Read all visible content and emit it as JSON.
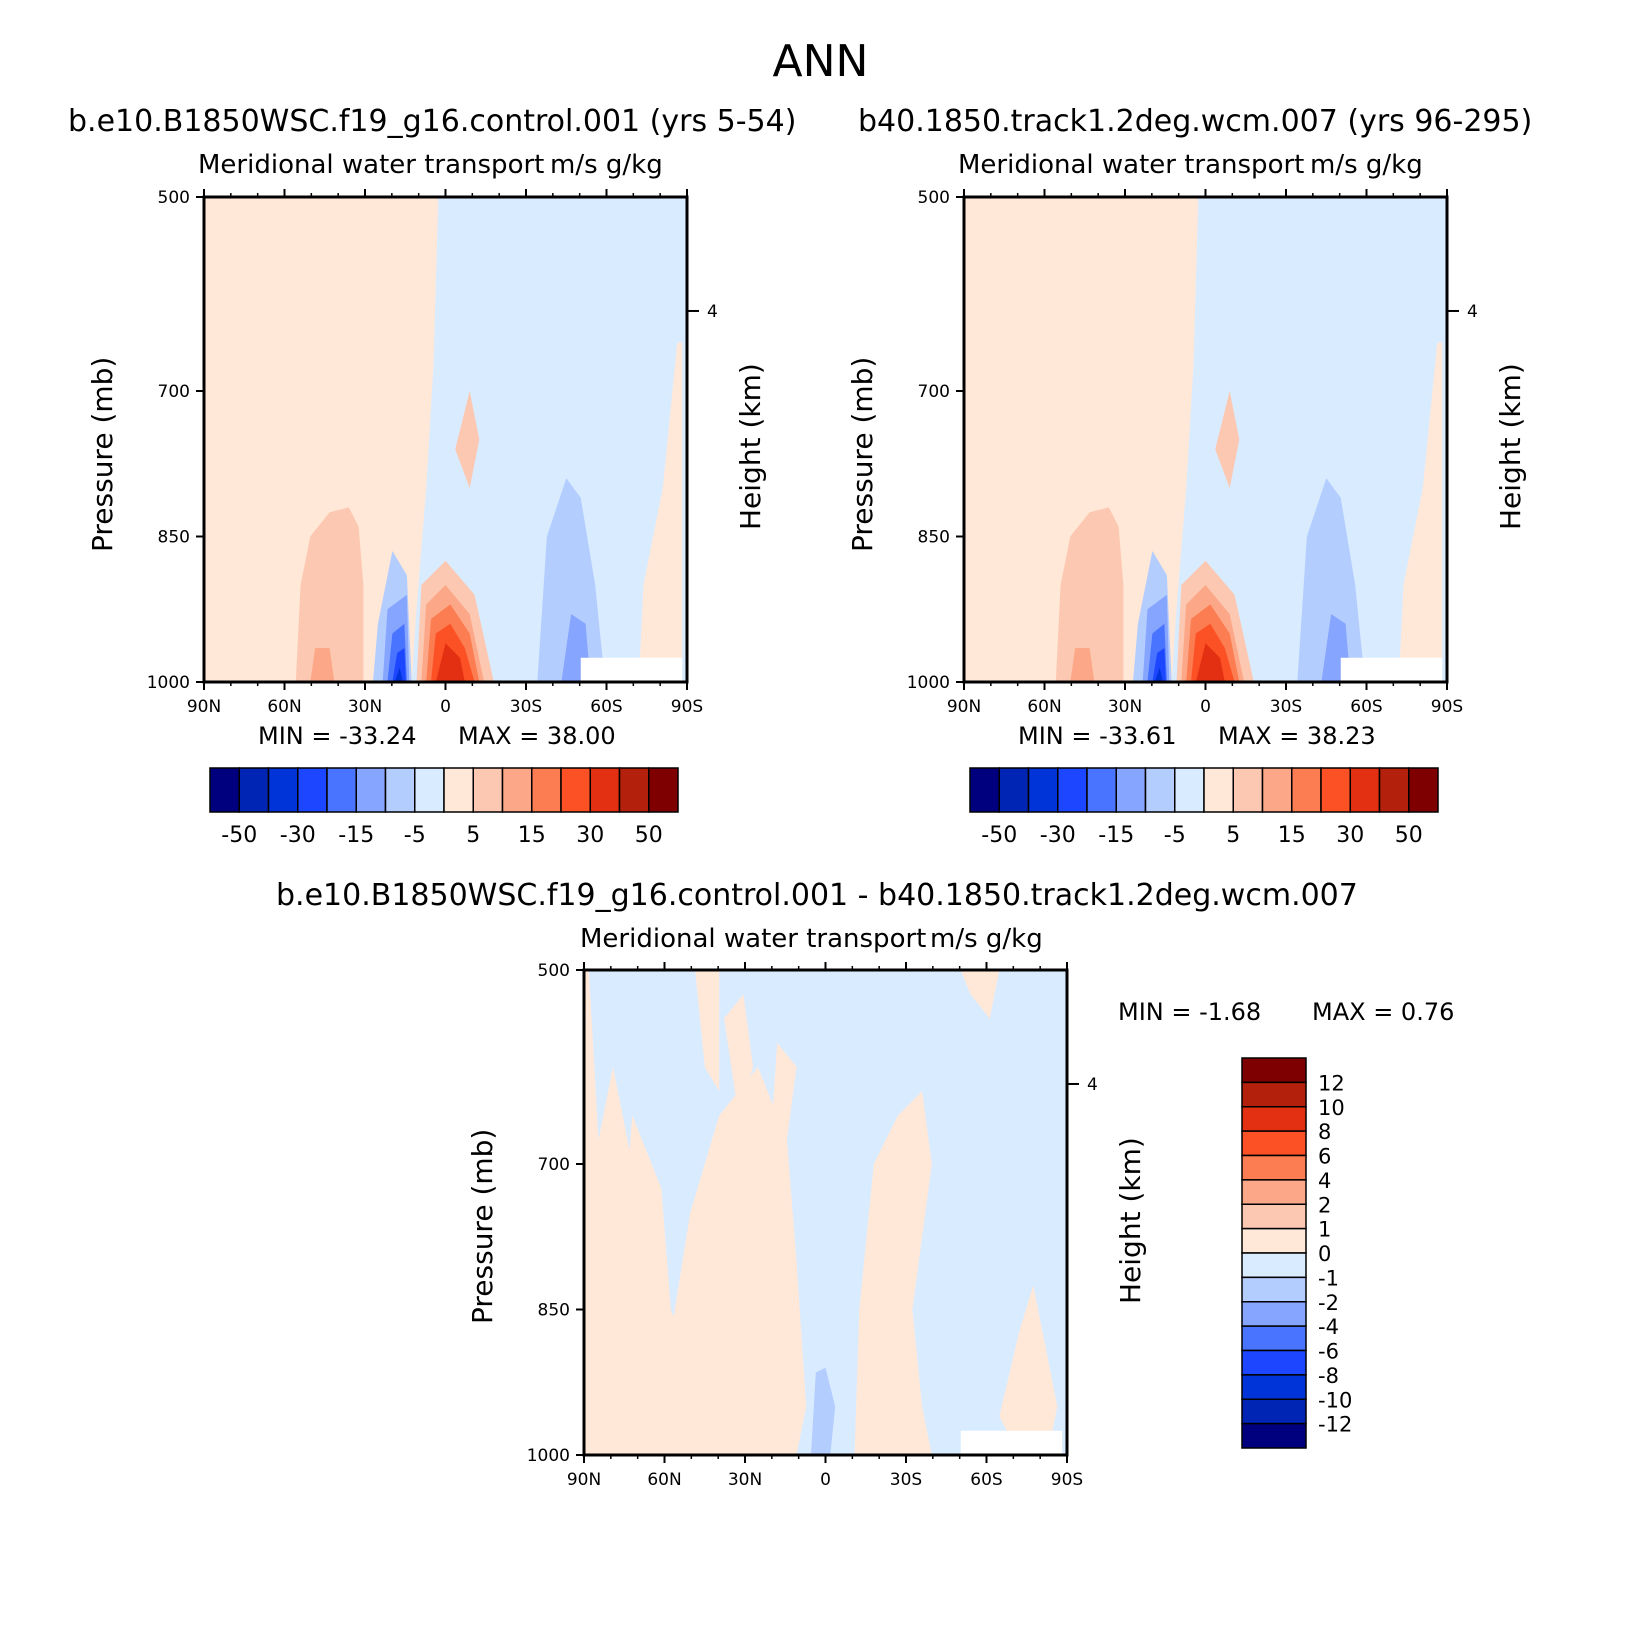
{
  "title": "ANN",
  "palette_diverging": [
    "#00007f",
    "#0025b4",
    "#0034d9",
    "#1c46ff",
    "#4974ff",
    "#86a5ff",
    "#b4cdff",
    "#d9ebff",
    "#ffe8d8",
    "#fdc8b1",
    "#fca888",
    "#fb7d51",
    "#fb5125",
    "#e43012",
    "#b3200b",
    "#7f0000"
  ],
  "chart_data": [
    {
      "type": "heatmap",
      "panel_title": "b.e10.B1850WSC.f19_g16.control.001 (yrs 5-54)",
      "subtitle_left": "Meridional water transport",
      "subtitle_right": "m/s g/kg",
      "ylabel": "Pressure (mb)",
      "ylabel_right": "Height (km)",
      "x_ticks": [
        "90N",
        "60N",
        "30N",
        "0",
        "30S",
        "60S",
        "90S"
      ],
      "y_ticks": [
        "500",
        "700",
        "850",
        "1000"
      ],
      "right_tick": "4",
      "ylim": [
        1000,
        500
      ],
      "min_label": "MIN = -33.24",
      "max_label": "MAX = 38.00",
      "min": -33.24,
      "max": 38.0,
      "colorbar_labels": [
        "-50",
        "-30",
        "-15",
        "-5",
        "5",
        "15",
        "30",
        "50"
      ]
    },
    {
      "type": "heatmap",
      "panel_title": "b40.1850.track1.2deg.wcm.007 (yrs 96-295)",
      "subtitle_left": "Meridional water transport",
      "subtitle_right": "m/s g/kg",
      "ylabel": "Pressure (mb)",
      "ylabel_right": "Height (km)",
      "x_ticks": [
        "90N",
        "60N",
        "30N",
        "0",
        "30S",
        "60S",
        "90S"
      ],
      "y_ticks": [
        "500",
        "700",
        "850",
        "1000"
      ],
      "right_tick": "4",
      "ylim": [
        1000,
        500
      ],
      "min_label": "MIN = -33.61",
      "max_label": "MAX = 38.23",
      "min": -33.61,
      "max": 38.23,
      "colorbar_labels": [
        "-50",
        "-30",
        "-15",
        "-5",
        "5",
        "15",
        "30",
        "50"
      ]
    },
    {
      "type": "heatmap",
      "panel_title": "b.e10.B1850WSC.f19_g16.control.001 - b40.1850.track1.2deg.wcm.007",
      "subtitle_left": "Meridional water transport",
      "subtitle_right": "m/s g/kg",
      "ylabel": "Pressure (mb)",
      "ylabel_right": "Height (km)",
      "x_ticks": [
        "90N",
        "60N",
        "30N",
        "0",
        "30S",
        "60S",
        "90S"
      ],
      "y_ticks": [
        "500",
        "700",
        "850",
        "1000"
      ],
      "right_tick": "4",
      "ylim": [
        1000,
        500
      ],
      "min_label": "MIN = -1.68",
      "max_label": "MAX = 0.76",
      "min": -1.68,
      "max": 0.76,
      "colorbar_labels": [
        "12",
        "10",
        "8",
        "6",
        "4",
        "2",
        "1",
        "0",
        "-1",
        "-2",
        "-4",
        "-6",
        "-8",
        "-10",
        "-12"
      ]
    }
  ]
}
